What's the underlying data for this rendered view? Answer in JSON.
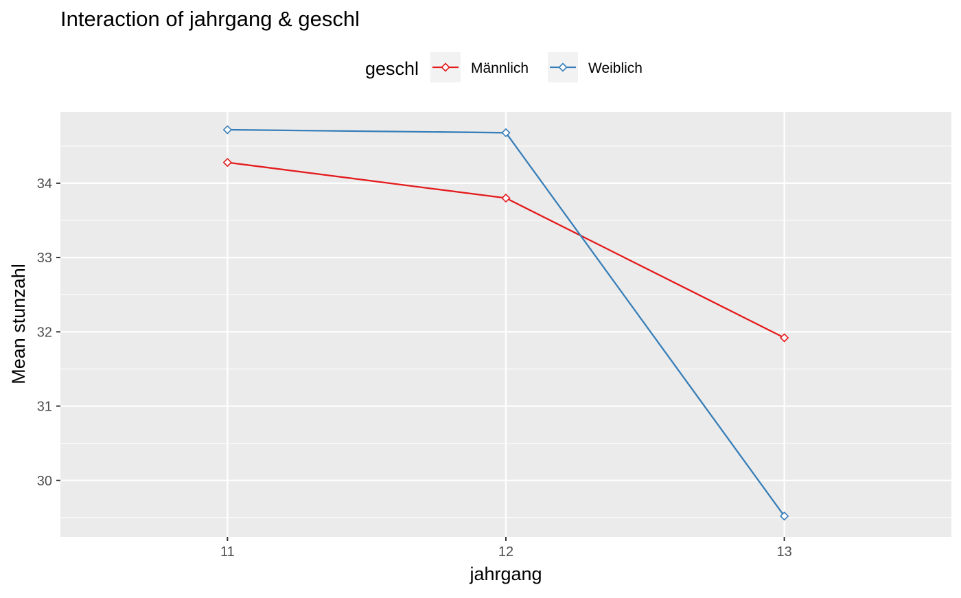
{
  "chart_data": {
    "type": "line",
    "title": "Interaction of jahrgang & geschl",
    "xlabel": "jahrgang",
    "ylabel": "Mean stunzahl",
    "categories": [
      "11",
      "12",
      "13"
    ],
    "x_range": [
      10.4,
      13.6
    ],
    "ylim": [
      29.24,
      34.96
    ],
    "y_ticks": [
      30,
      31,
      32,
      33,
      34
    ],
    "y_minor_ticks": [
      29.5,
      30.5,
      31.5,
      32.5,
      33.5,
      34.5
    ],
    "grid": true,
    "legend": {
      "title": "geschl",
      "placement": "top",
      "entries": [
        "Männlich",
        "Weiblich"
      ]
    },
    "series": [
      {
        "name": "Männlich",
        "color": "#e41a1c",
        "values": [
          34.28,
          33.8,
          31.92
        ]
      },
      {
        "name": "Weiblich",
        "color": "#377eb8",
        "values": [
          34.72,
          34.68,
          29.52
        ]
      }
    ],
    "colors": {
      "panel_background": "#ebebeb",
      "gridline": "#ffffff",
      "legend_key_background": "#f2f2f2",
      "tick_text": "#4d4d4d",
      "tick_mark": "#333333"
    }
  }
}
